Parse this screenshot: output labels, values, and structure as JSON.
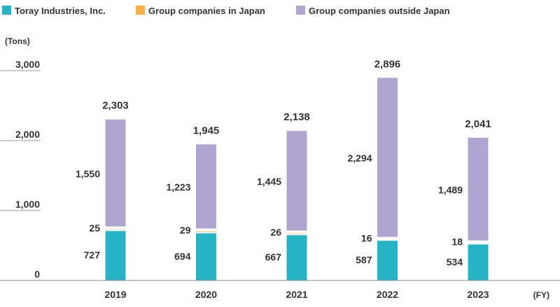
{
  "chart_data": {
    "type": "bar",
    "stacked": true,
    "categories": [
      "2019",
      "2020",
      "2021",
      "2022",
      "2023"
    ],
    "series": [
      {
        "name": "Toray Industries, Inc.",
        "color": "#27b3c6",
        "values": [
          727,
          694,
          667,
          587,
          534
        ]
      },
      {
        "name": "Group companies in Japan",
        "color": "#f9ae46",
        "values": [
          25,
          29,
          26,
          16,
          18
        ]
      },
      {
        "name": "Group companies outside Japan",
        "color": "#afa6d0",
        "values": [
          1550,
          1223,
          1445,
          2294,
          1489
        ]
      }
    ],
    "segment_labels": [
      [
        "727",
        "694",
        "667",
        "587",
        "534"
      ],
      [
        "25",
        "29",
        "26",
        "16",
        "18"
      ],
      [
        "1,550",
        "1,223",
        "1,445",
        "2,294",
        "1,489"
      ]
    ],
    "totals": [
      "2,303",
      "1,945",
      "2,138",
      "2,896",
      "2,041"
    ],
    "total_values": [
      2303,
      1945,
      2138,
      2896,
      2041
    ],
    "ylabel": "(Tons)",
    "xlabel": "(FY)",
    "ylim": [
      0,
      3000
    ],
    "yticks": [
      0,
      1000,
      2000,
      3000
    ],
    "ytick_labels": [
      "0",
      "1,000",
      "2,000",
      "3,000"
    ],
    "legend_position": "top-left",
    "grid": false
  }
}
